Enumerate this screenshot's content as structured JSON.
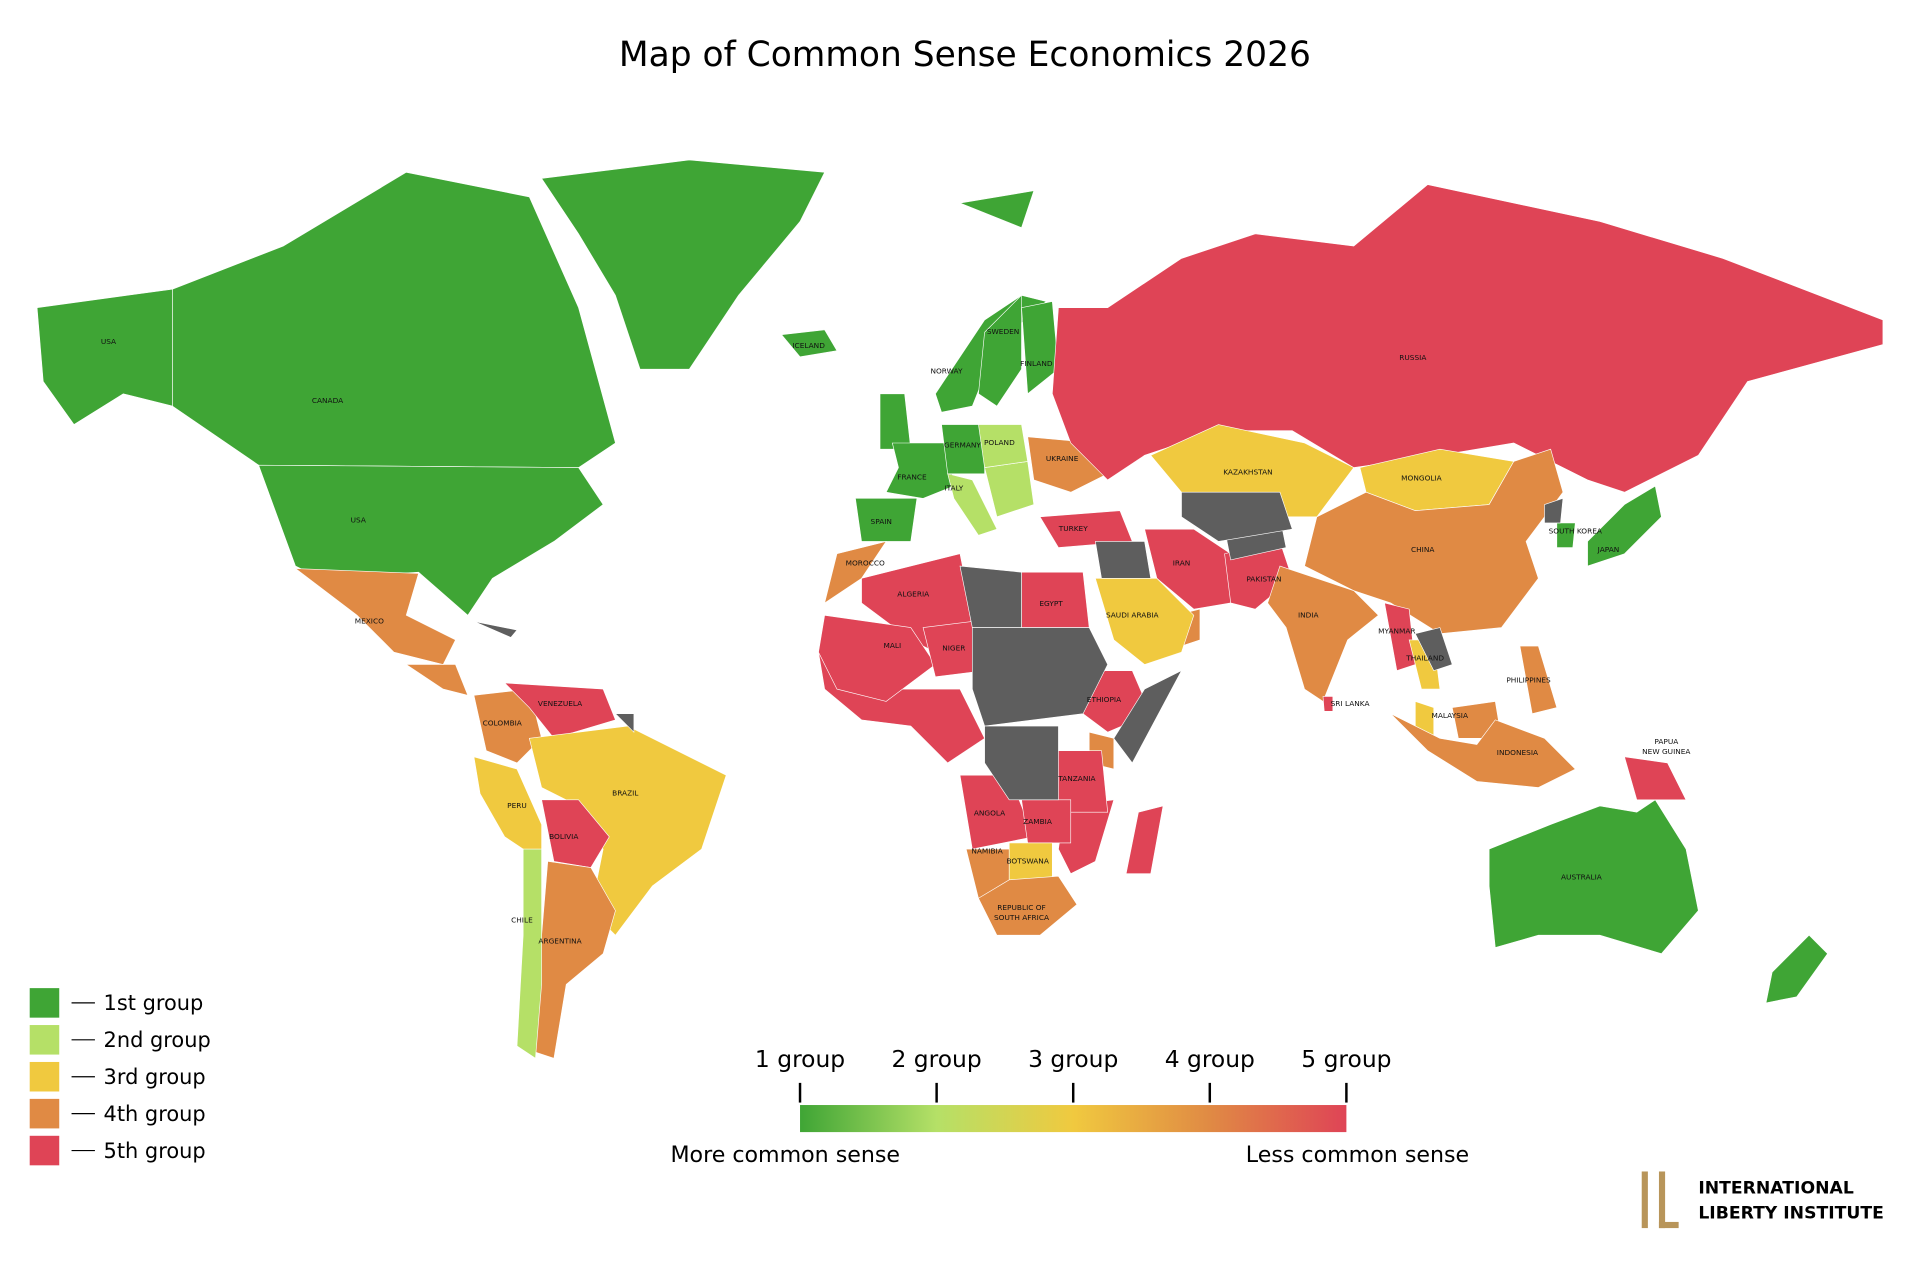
{
  "title": "Map of Common Sense Economics 2026",
  "legend": {
    "groups": [
      {
        "label": "1st group",
        "color": "#3fa535"
      },
      {
        "label": "2nd group",
        "color": "#b5e067"
      },
      {
        "label": "3rd group",
        "color": "#f0c93f"
      },
      {
        "label": "4th group",
        "color": "#e08a44"
      },
      {
        "label": "5th group",
        "color": "#df4456"
      }
    ]
  },
  "scale": {
    "ticks": [
      "1 group",
      "2 group",
      "3 group",
      "4 group",
      "5 group"
    ],
    "left_label": "More common sense",
    "right_label": "Less common sense"
  },
  "logo": {
    "line1": "INTERNATIONAL",
    "line2": "LIBERTY INSTITUTE"
  },
  "countries": [
    {
      "label": "USA",
      "group": 1
    },
    {
      "label": "CANADA",
      "group": 1
    },
    {
      "label": "USA",
      "group": 1
    },
    {
      "label": "MEXICO",
      "group": 4
    },
    {
      "label": "COLOMBIA",
      "group": 4
    },
    {
      "label": "VENEZUELA",
      "group": 5
    },
    {
      "label": "PERU",
      "group": 3
    },
    {
      "label": "BRAZIL",
      "group": 3
    },
    {
      "label": "BOLIVIA",
      "group": 5
    },
    {
      "label": "ARGENTINA",
      "group": 4
    },
    {
      "label": "CHILE",
      "group": 2
    },
    {
      "label": "ICELAND",
      "group": 1
    },
    {
      "label": "NORWAY",
      "group": 1
    },
    {
      "label": "SWEDEN",
      "group": 1
    },
    {
      "label": "FINLAND",
      "group": 1
    },
    {
      "label": "FRANCE",
      "group": 1
    },
    {
      "label": "SPAIN",
      "group": 1
    },
    {
      "label": "GERMANY",
      "group": 1
    },
    {
      "label": "POLAND",
      "group": 2
    },
    {
      "label": "ITALY",
      "group": 2
    },
    {
      "label": "UKRAINE",
      "group": 4
    },
    {
      "label": "TURKEY",
      "group": 5
    },
    {
      "label": "RUSSIA",
      "group": 5
    },
    {
      "label": "KAZAKHSTAN",
      "group": 3
    },
    {
      "label": "MONGOLIA",
      "group": 3
    },
    {
      "label": "CHINA",
      "group": 4
    },
    {
      "label": "IRAN",
      "group": 5
    },
    {
      "label": "PAKISTAN",
      "group": 5
    },
    {
      "label": "INDIA",
      "group": 4
    },
    {
      "label": "SRI LANKA",
      "group": 5
    },
    {
      "label": "SAUDI ARABIA",
      "group": 3
    },
    {
      "label": "MYANMAR",
      "group": 5
    },
    {
      "label": "THAILAND",
      "group": 3
    },
    {
      "label": "MALAYSIA",
      "group": 3
    },
    {
      "label": "INDONESIA",
      "group": 4
    },
    {
      "label": "PHILIPPINES",
      "group": 4
    },
    {
      "label": "JAPAN",
      "group": 1
    },
    {
      "label": "SOUTH KOREA",
      "group": 1
    },
    {
      "lines": [
        "PAPUA",
        "NEW GUINEA"
      ],
      "group": 5
    },
    {
      "label": "AUSTRALIA",
      "group": 1
    },
    {
      "label": "MOROCCO",
      "group": 4
    },
    {
      "label": "ALGERIA",
      "group": 5
    },
    {
      "label": "MALI",
      "group": 5
    },
    {
      "label": "NIGER",
      "group": 5
    },
    {
      "label": "EGYPT",
      "group": 5
    },
    {
      "label": "ETHIOPIA",
      "group": 5
    },
    {
      "label": "TANZANIA",
      "group": 5
    },
    {
      "label": "ANGOLA",
      "group": 5
    },
    {
      "label": "ZAMBIA",
      "group": 5
    },
    {
      "label": "NAMIBIA",
      "group": 4
    },
    {
      "label": "BOTSWANA",
      "group": 3
    },
    {
      "lines": [
        "REPUBLIC OF",
        "SOUTH AFRICA"
      ],
      "group": 4
    }
  ]
}
